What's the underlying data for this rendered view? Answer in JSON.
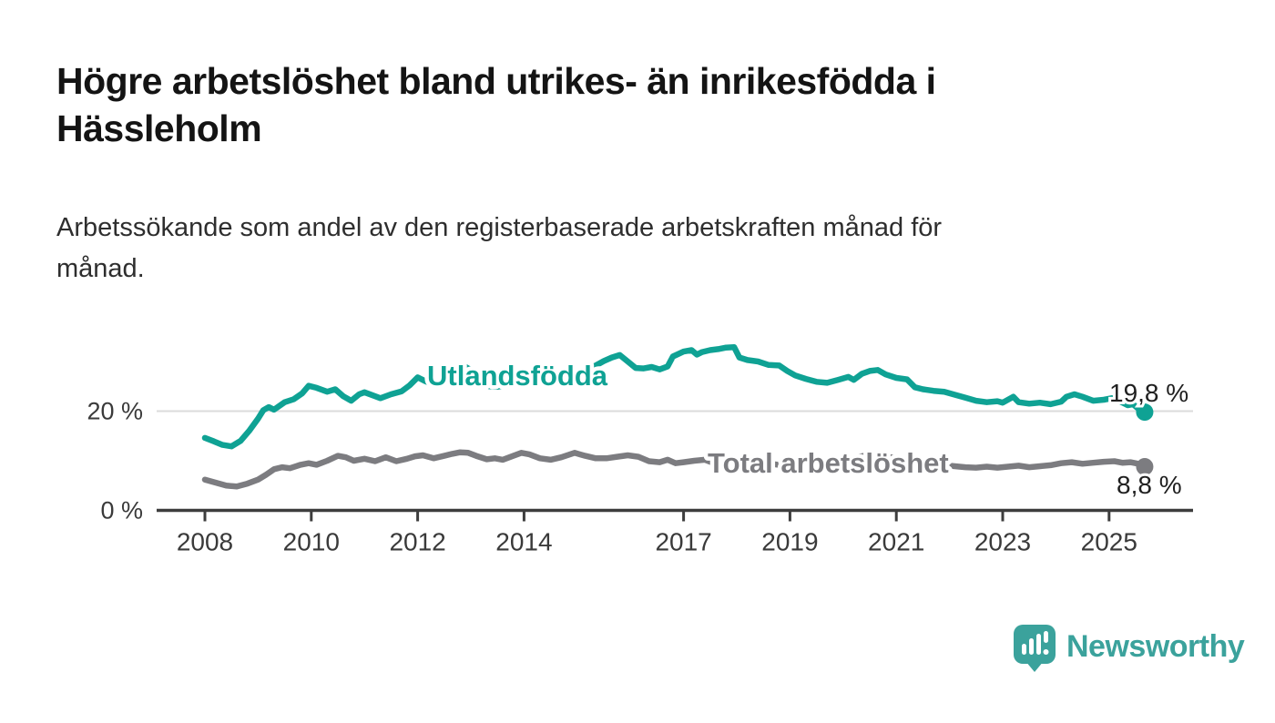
{
  "title": {
    "text": "Högre arbetslöshet bland utrikes- än inrikesfödda i Hässleholm",
    "lines": [
      "Högre arbetslöshet bland utrikes- än inrikesfödda i",
      "Hässleholm"
    ]
  },
  "subtitle": {
    "text": "Arbetssökande som andel av den registerbaserade arbetskraften månad för månad.",
    "lines": [
      "Arbetssökande som andel av den registerbaserade arbetskraften månad för",
      "månad."
    ]
  },
  "chart_data": {
    "type": "line",
    "title": "",
    "xlabel": "",
    "ylabel": "",
    "unit": "%",
    "xlim": [
      2007.9,
      2026.5
    ],
    "ylim": [
      0,
      38
    ],
    "grid": "horizontal-20-only",
    "legend_position": "inline-labels-on-lines",
    "x_ticks": [
      2008,
      2010,
      2012,
      2014,
      2017,
      2019,
      2021,
      2023,
      2025
    ],
    "x_tick_labels": [
      "2008",
      "2010",
      "2012",
      "2014",
      "2017",
      "2019",
      "2021",
      "2023",
      "2025"
    ],
    "y_ticks": [
      {
        "value": 0,
        "label": "0 %"
      },
      {
        "value": 20,
        "label": "20 %"
      }
    ],
    "series": [
      {
        "name": "Utlandsfödda",
        "color": "#0FA294",
        "end_value": 19.8,
        "end_label": "19,8 %",
        "x": [
          2008.0,
          2008.17,
          2008.33,
          2008.5,
          2008.67,
          2008.83,
          2009.0,
          2009.1,
          2009.2,
          2009.3,
          2009.5,
          2009.67,
          2009.83,
          2009.95,
          2010.1,
          2010.3,
          2010.45,
          2010.6,
          2010.75,
          2010.9,
          2011.0,
          2011.15,
          2011.3,
          2011.5,
          2011.7,
          2011.85,
          2012.0,
          2012.15,
          2012.35,
          2012.55,
          2012.75,
          2012.9,
          2013.05,
          2013.2,
          2013.35,
          2013.5,
          2013.65,
          2013.9,
          2014.1,
          2014.35,
          2014.6,
          2014.85,
          2015.1,
          2015.35,
          2015.5,
          2015.65,
          2015.8,
          2015.95,
          2016.1,
          2016.25,
          2016.4,
          2016.55,
          2016.7,
          2016.8,
          2017.0,
          2017.15,
          2017.25,
          2017.35,
          2017.5,
          2017.65,
          2017.8,
          2017.95,
          2018.05,
          2018.2,
          2018.4,
          2018.6,
          2018.8,
          2018.95,
          2019.1,
          2019.3,
          2019.5,
          2019.7,
          2019.9,
          2020.1,
          2020.2,
          2020.35,
          2020.5,
          2020.65,
          2020.8,
          2021.0,
          2021.2,
          2021.35,
          2021.5,
          2021.7,
          2021.9,
          2022.1,
          2022.3,
          2022.5,
          2022.7,
          2022.9,
          2023.0,
          2023.2,
          2023.3,
          2023.5,
          2023.7,
          2023.9,
          2024.1,
          2024.2,
          2024.35,
          2024.5,
          2024.7,
          2024.9,
          2025.05,
          2025.2,
          2025.35,
          2025.45,
          2025.55,
          2025.67
        ],
        "values": [
          14.6,
          13.9,
          13.2,
          12.9,
          14.0,
          16.0,
          18.5,
          20.2,
          20.8,
          20.3,
          21.8,
          22.4,
          23.6,
          25.1,
          24.7,
          23.9,
          24.4,
          23.0,
          22.1,
          23.4,
          23.8,
          23.2,
          22.6,
          23.4,
          24.0,
          25.2,
          26.8,
          26.0,
          25.1,
          26.5,
          28.0,
          28.9,
          28.0,
          26.0,
          25.0,
          24.9,
          25.2,
          25.8,
          26.3,
          26.8,
          27.3,
          27.8,
          28.3,
          29.2,
          30.1,
          30.8,
          31.3,
          30.0,
          28.7,
          28.6,
          28.9,
          28.4,
          29.0,
          31.0,
          32.0,
          32.3,
          31.4,
          31.9,
          32.3,
          32.5,
          32.8,
          32.9,
          30.8,
          30.3,
          30.0,
          29.3,
          29.2,
          28.1,
          27.2,
          26.5,
          25.9,
          25.7,
          26.3,
          26.9,
          26.3,
          27.5,
          28.1,
          28.3,
          27.4,
          26.7,
          26.4,
          24.8,
          24.4,
          24.1,
          23.9,
          23.3,
          22.7,
          22.1,
          21.8,
          22.0,
          21.7,
          22.9,
          21.8,
          21.5,
          21.7,
          21.4,
          21.9,
          22.9,
          23.4,
          22.9,
          22.1,
          22.3,
          22.6,
          22.0,
          21.2,
          21.4,
          20.5,
          19.8
        ]
      },
      {
        "name": "Total arbetslöshet",
        "color": "#7C7C80",
        "end_value": 8.8,
        "end_label": "8,8 %",
        "x": [
          2008.0,
          2008.2,
          2008.4,
          2008.6,
          2008.8,
          2009.0,
          2009.15,
          2009.3,
          2009.45,
          2009.6,
          2009.8,
          2009.95,
          2010.1,
          2010.3,
          2010.5,
          2010.65,
          2010.8,
          2011.0,
          2011.2,
          2011.4,
          2011.6,
          2011.8,
          2011.95,
          2012.1,
          2012.3,
          2012.5,
          2012.65,
          2012.8,
          2012.95,
          2013.1,
          2013.3,
          2013.45,
          2013.6,
          2013.8,
          2013.95,
          2014.1,
          2014.3,
          2014.5,
          2014.7,
          2014.95,
          2015.15,
          2015.35,
          2015.55,
          2015.75,
          2015.95,
          2016.15,
          2016.35,
          2016.55,
          2016.7,
          2016.85,
          2017.0,
          2017.2,
          2017.4,
          2017.6,
          2017.8,
          2017.95,
          2018.1,
          2018.3,
          2018.5,
          2018.7,
          2018.9,
          2019.1,
          2019.3,
          2019.5,
          2019.7,
          2019.9,
          2020.1,
          2020.3,
          2020.5,
          2020.7,
          2020.9,
          2021.1,
          2021.3,
          2021.5,
          2021.7,
          2021.9,
          2022.1,
          2022.3,
          2022.5,
          2022.7,
          2022.9,
          2023.1,
          2023.3,
          2023.5,
          2023.7,
          2023.9,
          2024.1,
          2024.3,
          2024.5,
          2024.7,
          2024.9,
          2025.1,
          2025.25,
          2025.4,
          2025.55,
          2025.67
        ],
        "values": [
          6.2,
          5.6,
          5.0,
          4.8,
          5.4,
          6.2,
          7.2,
          8.3,
          8.7,
          8.5,
          9.2,
          9.5,
          9.2,
          10.0,
          11.0,
          10.7,
          10.0,
          10.4,
          9.9,
          10.7,
          9.9,
          10.4,
          10.9,
          11.1,
          10.5,
          11.0,
          11.4,
          11.7,
          11.6,
          11.0,
          10.3,
          10.5,
          10.2,
          11.0,
          11.6,
          11.3,
          10.5,
          10.2,
          10.7,
          11.6,
          11.0,
          10.5,
          10.5,
          10.8,
          11.1,
          10.8,
          9.9,
          9.7,
          10.2,
          9.5,
          9.7,
          10.0,
          10.2,
          9.4,
          9.2,
          9.4,
          9.7,
          9.3,
          9.0,
          9.3,
          9.0,
          8.9,
          9.2,
          9.0,
          9.3,
          9.6,
          10.0,
          10.8,
          11.2,
          11.0,
          10.7,
          10.4,
          10.0,
          9.6,
          9.3,
          9.1,
          8.9,
          8.7,
          8.6,
          8.8,
          8.6,
          8.8,
          9.0,
          8.7,
          8.9,
          9.1,
          9.5,
          9.7,
          9.4,
          9.6,
          9.8,
          9.9,
          9.6,
          9.7,
          9.4,
          8.8
        ]
      }
    ],
    "colors": {
      "grid": "#DBDBDB",
      "axis": "#3D3D3D",
      "tick_text": "#3A3A3A",
      "value_label_text": "#1F1F1F"
    }
  },
  "logo": {
    "text": "Newsworthy",
    "icon": "newsworthy-speech-bubble-bar-chart-icon",
    "color": "#3BA29C"
  }
}
